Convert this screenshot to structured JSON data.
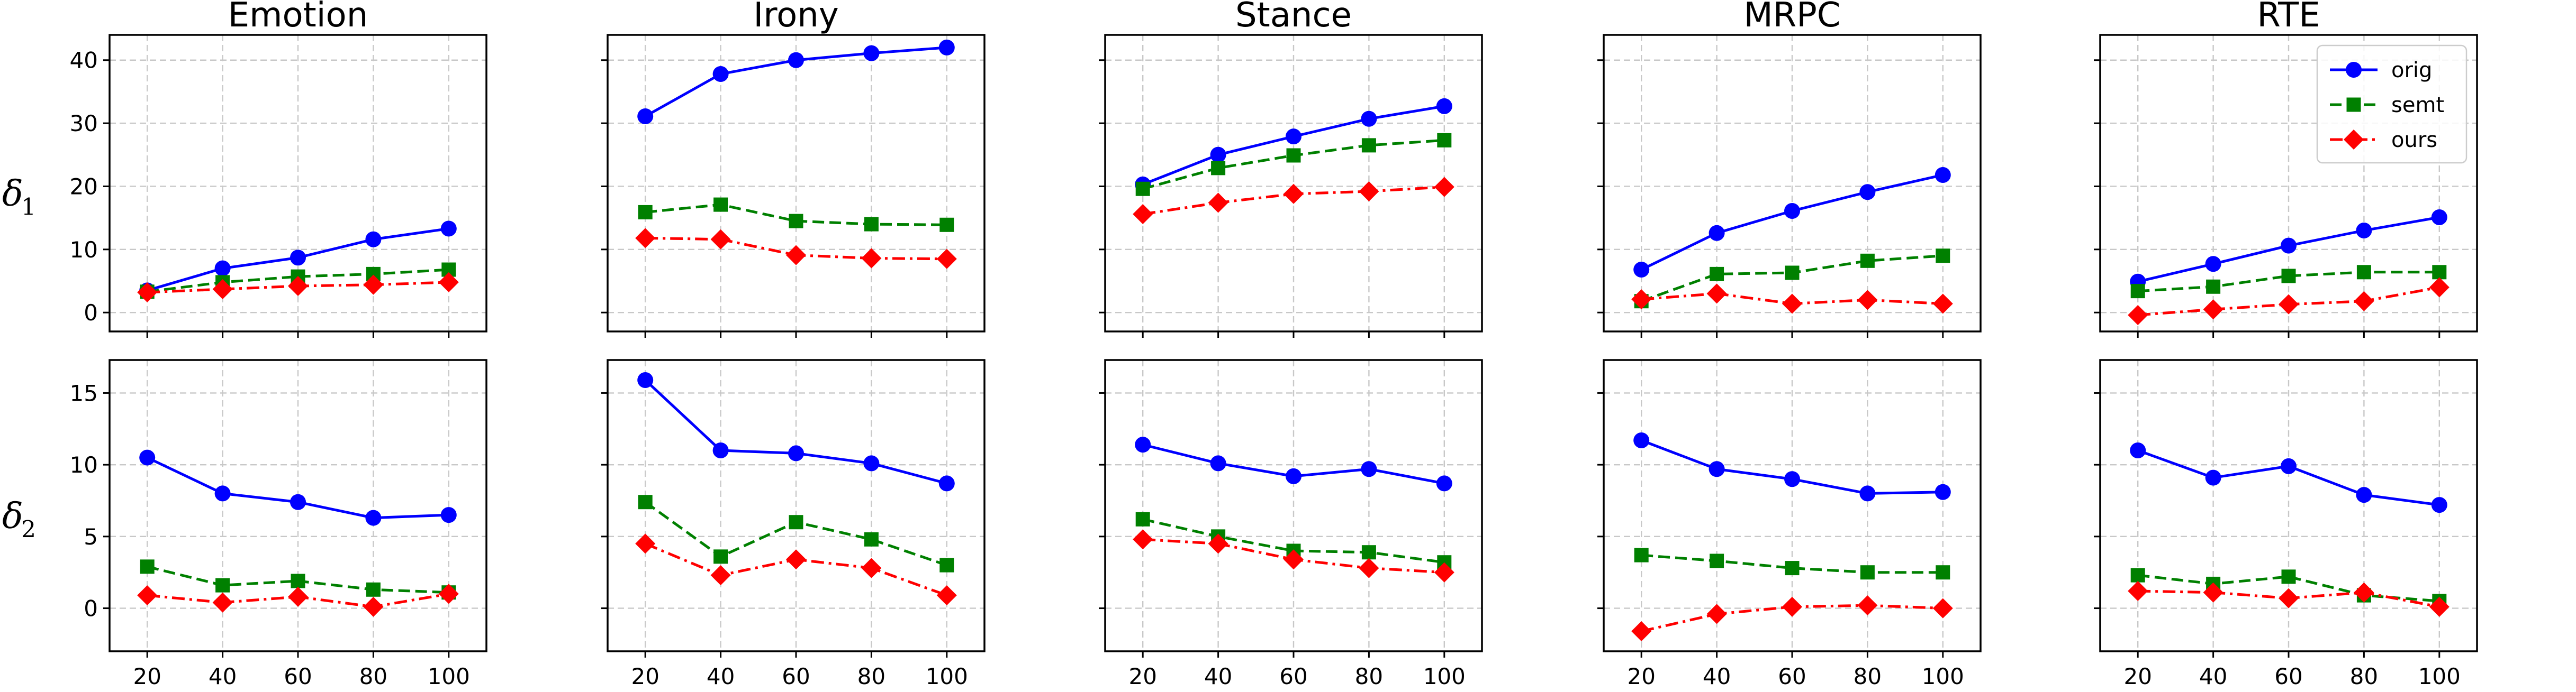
{
  "colors": {
    "orig": "#0000ff",
    "semt": "#008000",
    "ours": "#ff0000"
  },
  "chart_data": {
    "type": "line",
    "x": [
      20,
      40,
      60,
      80,
      100
    ],
    "x_ticks": [
      "20",
      "40",
      "60",
      "80",
      "100"
    ],
    "row_labels": [
      {
        "base": "δ",
        "sub": "1"
      },
      {
        "base": "δ",
        "sub": "2"
      }
    ],
    "row_ylim": [
      [
        -3,
        44
      ],
      [
        -3,
        17.3
      ]
    ],
    "row_yticks": [
      [
        "0",
        "10",
        "20",
        "30",
        "40"
      ],
      [
        "0",
        "5",
        "10",
        "15"
      ]
    ],
    "row_ytick_values": [
      [
        0,
        10,
        20,
        30,
        40
      ],
      [
        0,
        5,
        10,
        15
      ]
    ],
    "grid": true,
    "legend": {
      "placement": "top-right",
      "entries": [
        {
          "name": "orig",
          "marker": "circle",
          "line": "solid"
        },
        {
          "name": "semt",
          "marker": "square",
          "line": "dashed"
        },
        {
          "name": "ours",
          "marker": "diamond",
          "line": "dash-dot"
        }
      ]
    },
    "panels": [
      {
        "title": "Emotion",
        "row": 0,
        "series": [
          {
            "name": "orig",
            "values": [
              3.5,
              7.0,
              8.7,
              11.6,
              13.3
            ]
          },
          {
            "name": "semt",
            "values": [
              3.3,
              4.8,
              5.7,
              6.1,
              6.8
            ]
          },
          {
            "name": "ours",
            "values": [
              3.2,
              3.7,
              4.2,
              4.4,
              4.8
            ]
          }
        ]
      },
      {
        "title": "Irony",
        "row": 0,
        "series": [
          {
            "name": "orig",
            "values": [
              31.1,
              37.8,
              40.0,
              41.1,
              42.0
            ]
          },
          {
            "name": "semt",
            "values": [
              15.9,
              17.1,
              14.5,
              14.0,
              13.9
            ]
          },
          {
            "name": "ours",
            "values": [
              11.8,
              11.6,
              9.1,
              8.6,
              8.5
            ]
          }
        ]
      },
      {
        "title": "Stance",
        "row": 0,
        "series": [
          {
            "name": "orig",
            "values": [
              20.3,
              25.0,
              27.9,
              30.7,
              32.7
            ]
          },
          {
            "name": "semt",
            "values": [
              19.6,
              22.9,
              24.9,
              26.5,
              27.3
            ]
          },
          {
            "name": "ours",
            "values": [
              15.6,
              17.4,
              18.8,
              19.2,
              19.9
            ]
          }
        ]
      },
      {
        "title": "MRPC",
        "row": 0,
        "series": [
          {
            "name": "orig",
            "values": [
              6.8,
              12.6,
              16.1,
              19.1,
              21.8
            ]
          },
          {
            "name": "semt",
            "values": [
              1.8,
              6.1,
              6.3,
              8.2,
              9.0
            ]
          },
          {
            "name": "ours",
            "values": [
              2.1,
              3.0,
              1.4,
              2.0,
              1.4
            ]
          }
        ]
      },
      {
        "title": "RTE",
        "row": 0,
        "series": [
          {
            "name": "orig",
            "values": [
              4.9,
              7.7,
              10.6,
              13.0,
              15.1
            ]
          },
          {
            "name": "semt",
            "values": [
              3.4,
              4.1,
              5.8,
              6.4,
              6.4
            ]
          },
          {
            "name": "ours",
            "values": [
              -0.4,
              0.5,
              1.3,
              1.8,
              4.0
            ]
          }
        ]
      },
      {
        "title": "",
        "row": 1,
        "series": [
          {
            "name": "orig",
            "values": [
              10.5,
              8.0,
              7.4,
              6.3,
              6.5
            ]
          },
          {
            "name": "semt",
            "values": [
              2.9,
              1.6,
              1.9,
              1.3,
              1.1
            ]
          },
          {
            "name": "ours",
            "values": [
              0.9,
              0.4,
              0.8,
              0.1,
              1.0
            ]
          }
        ]
      },
      {
        "title": "",
        "row": 1,
        "series": [
          {
            "name": "orig",
            "values": [
              15.9,
              11.0,
              10.8,
              10.1,
              8.7
            ]
          },
          {
            "name": "semt",
            "values": [
              7.4,
              3.6,
              6.0,
              4.8,
              3.0
            ]
          },
          {
            "name": "ours",
            "values": [
              4.5,
              2.3,
              3.4,
              2.8,
              0.9
            ]
          }
        ]
      },
      {
        "title": "",
        "row": 1,
        "series": [
          {
            "name": "orig",
            "values": [
              11.4,
              10.1,
              9.2,
              9.7,
              8.7
            ]
          },
          {
            "name": "semt",
            "values": [
              6.2,
              5.0,
              4.0,
              3.9,
              3.2
            ]
          },
          {
            "name": "ours",
            "values": [
              4.8,
              4.5,
              3.4,
              2.8,
              2.5
            ]
          }
        ]
      },
      {
        "title": "",
        "row": 1,
        "series": [
          {
            "name": "orig",
            "values": [
              11.7,
              9.7,
              9.0,
              8.0,
              8.1
            ]
          },
          {
            "name": "semt",
            "values": [
              3.7,
              3.3,
              2.8,
              2.5,
              2.5
            ]
          },
          {
            "name": "ours",
            "values": [
              -1.6,
              -0.4,
              0.1,
              0.2,
              0.0
            ]
          }
        ]
      },
      {
        "title": "",
        "row": 1,
        "series": [
          {
            "name": "orig",
            "values": [
              11.0,
              9.1,
              9.9,
              7.9,
              7.2
            ]
          },
          {
            "name": "semt",
            "values": [
              2.3,
              1.7,
              2.2,
              0.9,
              0.5
            ]
          },
          {
            "name": "ours",
            "values": [
              1.2,
              1.1,
              0.7,
              1.1,
              0.1
            ]
          }
        ]
      }
    ]
  }
}
